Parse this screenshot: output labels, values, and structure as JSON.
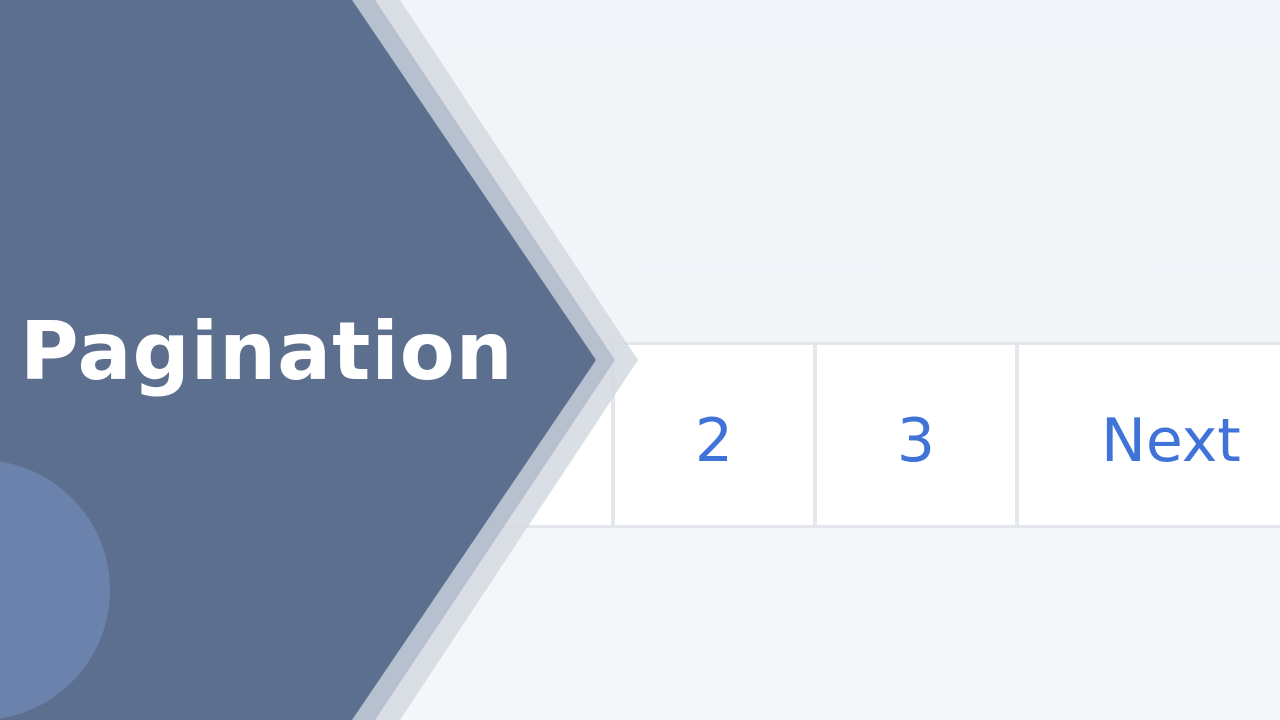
{
  "banner": {
    "title": "Pagination",
    "colors": {
      "panel": "#5d6f8f",
      "circle": "#6b82ad",
      "outer_band": "#d4d9e1",
      "mid_band": "#b3bccb"
    }
  },
  "pagination": {
    "pages": [
      "2",
      "3"
    ],
    "next_label": "Next",
    "link_color": "#3f73d8",
    "border_color": "#e3e6ea"
  },
  "background_color": "#f3f6fa"
}
